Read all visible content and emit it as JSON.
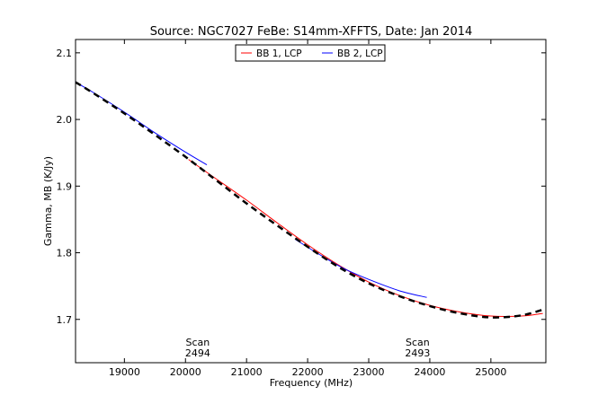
{
  "chart_data": {
    "type": "line",
    "title": "Source: NGC7027 FeBe: S14mm-XFFTS, Date: Jan 2014",
    "xlabel": "Frequency (MHz)",
    "ylabel": "Gamma, MB (K/Jy)",
    "xlim": [
      18200,
      25900
    ],
    "ylim": [
      1.635,
      2.12
    ],
    "xticks": [
      19000,
      20000,
      21000,
      22000,
      23000,
      24000,
      25000
    ],
    "xtick_labels": [
      "19000",
      "20000",
      "21000",
      "22000",
      "23000",
      "24000",
      "25000"
    ],
    "yticks": [
      1.7,
      1.8,
      1.9,
      2.0,
      2.1
    ],
    "ytick_labels": [
      "1.7",
      "1.8",
      "1.9",
      "2.0",
      "2.1"
    ],
    "grid": false,
    "legend_position": "top-center",
    "series": [
      {
        "name": "BB 1, LCP",
        "color": "#ff0000",
        "style": "solid",
        "x": [
          20050,
          20500,
          21000,
          21500,
          22000,
          22500,
          23000,
          23500,
          24000,
          24500,
          25000,
          25500,
          25850
        ],
        "y": [
          1.94,
          1.911,
          1.879,
          1.845,
          1.812,
          1.782,
          1.756,
          1.736,
          1.721,
          1.711,
          1.705,
          1.705,
          1.709
        ]
      },
      {
        "name": "BB 2, LCP",
        "color": "#0000ff",
        "style": "solid",
        "x": [
          18200,
          18500,
          19000,
          19500,
          20000,
          20350
        ],
        "y": [
          2.056,
          2.04,
          2.011,
          1.98,
          1.951,
          1.932
        ]
      },
      {
        "name": "BB 2, LCP",
        "color": "#0000ff",
        "style": "solid",
        "x": [
          21800,
          22200,
          22600,
          23000,
          23500,
          23950
        ],
        "y": [
          1.82,
          1.797,
          1.776,
          1.76,
          1.743,
          1.733
        ]
      },
      {
        "name": "",
        "color": "#000000",
        "style": "dashed",
        "x": [
          18200,
          18500,
          19000,
          19500,
          20000,
          20500,
          21000,
          21500,
          22000,
          22500,
          23000,
          23500,
          24000,
          24500,
          25000,
          25500,
          25900
        ],
        "y": [
          2.056,
          2.039,
          2.009,
          1.977,
          1.944,
          1.909,
          1.874,
          1.841,
          1.809,
          1.779,
          1.754,
          1.735,
          1.72,
          1.709,
          1.703,
          1.706,
          1.716
        ]
      }
    ],
    "legend": [
      {
        "label": "BB 1, LCP",
        "color": "#ff0000"
      },
      {
        "label": "BB 2, LCP",
        "color": "#0000ff"
      }
    ],
    "annotations": [
      {
        "lines": [
          "Scan",
          "2494"
        ],
        "x": 20200
      },
      {
        "lines": [
          "Scan",
          "2493"
        ],
        "x": 23800
      }
    ]
  }
}
